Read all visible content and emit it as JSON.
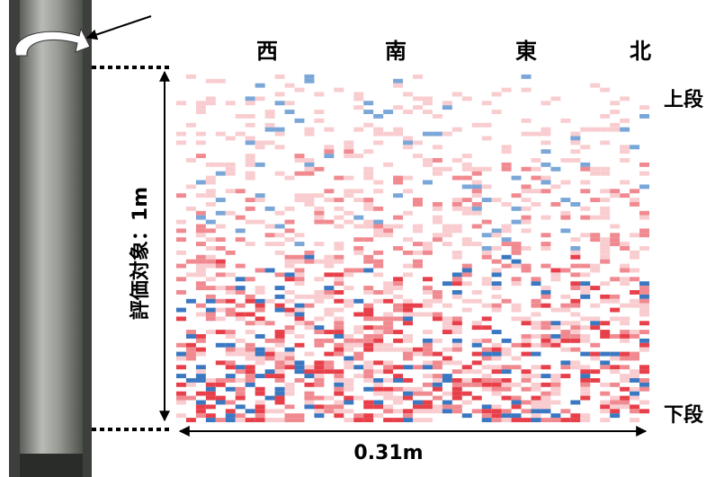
{
  "directions": [
    "西",
    "南",
    "東",
    "北"
  ],
  "top_label": "上段",
  "bottom_label": "下段",
  "height_label": "評価対象：1m",
  "width_label": "0.31m"
}
